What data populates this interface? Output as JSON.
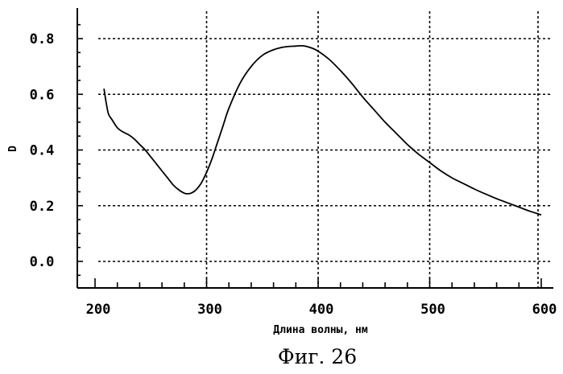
{
  "figure_caption": "Фиг. 26",
  "chart_data": {
    "type": "line",
    "xlabel": "Длина волны, нм",
    "ylabel": "D",
    "xlim": [
      200,
      600
    ],
    "ylim": [
      -0.08,
      0.93
    ],
    "x_ticks": [
      200,
      300,
      400,
      500,
      600
    ],
    "x_tick_labels": [
      "200",
      "300",
      "400",
      "500",
      "600"
    ],
    "y_ticks": [
      0.0,
      0.2,
      0.4,
      0.6,
      0.8
    ],
    "y_tick_labels": [
      "0.0",
      "0.2",
      "0.4",
      "0.6",
      "0.8"
    ],
    "grid": true,
    "series": [
      {
        "x": [
          208,
          210,
          212,
          215,
          220,
          225,
          230,
          235,
          240,
          245,
          250,
          255,
          260,
          265,
          270,
          275,
          280,
          283,
          286,
          290,
          295,
          300,
          305,
          310,
          315,
          320,
          330,
          340,
          350,
          360,
          370,
          380,
          387,
          395,
          400,
          410,
          420,
          430,
          440,
          450,
          460,
          470,
          480,
          490,
          500,
          510,
          520,
          530,
          540,
          550,
          560,
          570,
          580,
          590,
          600
        ],
        "y": [
          0.62,
          0.57,
          0.53,
          0.51,
          0.48,
          0.465,
          0.455,
          0.44,
          0.42,
          0.4,
          0.375,
          0.35,
          0.325,
          0.3,
          0.275,
          0.257,
          0.245,
          0.243,
          0.245,
          0.255,
          0.28,
          0.32,
          0.37,
          0.43,
          0.49,
          0.55,
          0.64,
          0.7,
          0.74,
          0.76,
          0.77,
          0.773,
          0.774,
          0.765,
          0.755,
          0.725,
          0.685,
          0.64,
          0.59,
          0.545,
          0.5,
          0.46,
          0.42,
          0.385,
          0.355,
          0.325,
          0.3,
          0.28,
          0.26,
          0.242,
          0.225,
          0.21,
          0.195,
          0.18,
          0.167
        ]
      }
    ]
  }
}
